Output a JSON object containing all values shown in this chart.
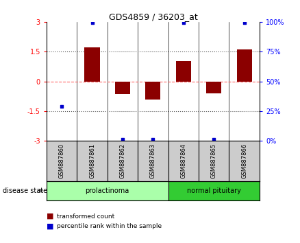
{
  "title": "GDS4859 / 36203_at",
  "samples": [
    "GSM887860",
    "GSM887861",
    "GSM887862",
    "GSM887863",
    "GSM887864",
    "GSM887865",
    "GSM887866"
  ],
  "red_bars": [
    0.0,
    1.72,
    -0.62,
    -0.9,
    1.02,
    -0.6,
    1.6
  ],
  "blue_dots": [
    -1.25,
    2.97,
    -2.92,
    -2.92,
    2.97,
    -2.92,
    2.97
  ],
  "ylim": [
    -3,
    3
  ],
  "yticks_left": [
    -3,
    -1.5,
    0,
    1.5,
    3
  ],
  "yticks_right_vals": [
    0,
    25,
    50,
    75,
    100
  ],
  "yticks_right_pos": [
    -3,
    -1.5,
    0,
    1.5,
    3
  ],
  "groups": [
    {
      "label": "prolactinoma",
      "samples": [
        0,
        1,
        2,
        3
      ],
      "color": "#aaffaa"
    },
    {
      "label": "normal pituitary",
      "samples": [
        4,
        5,
        6
      ],
      "color": "#33cc33"
    }
  ],
  "disease_state_label": "disease state",
  "legend_red_label": "transformed count",
  "legend_blue_label": "percentile rank within the sample",
  "bar_color": "#8b0000",
  "dot_color": "#0000cc",
  "zero_line_color": "#ff6666",
  "dotted_line_color": "#555555",
  "background_color": "#ffffff",
  "plot_bg_color": "#ffffff",
  "bar_width": 0.5,
  "sample_box_color": "#cccccc"
}
